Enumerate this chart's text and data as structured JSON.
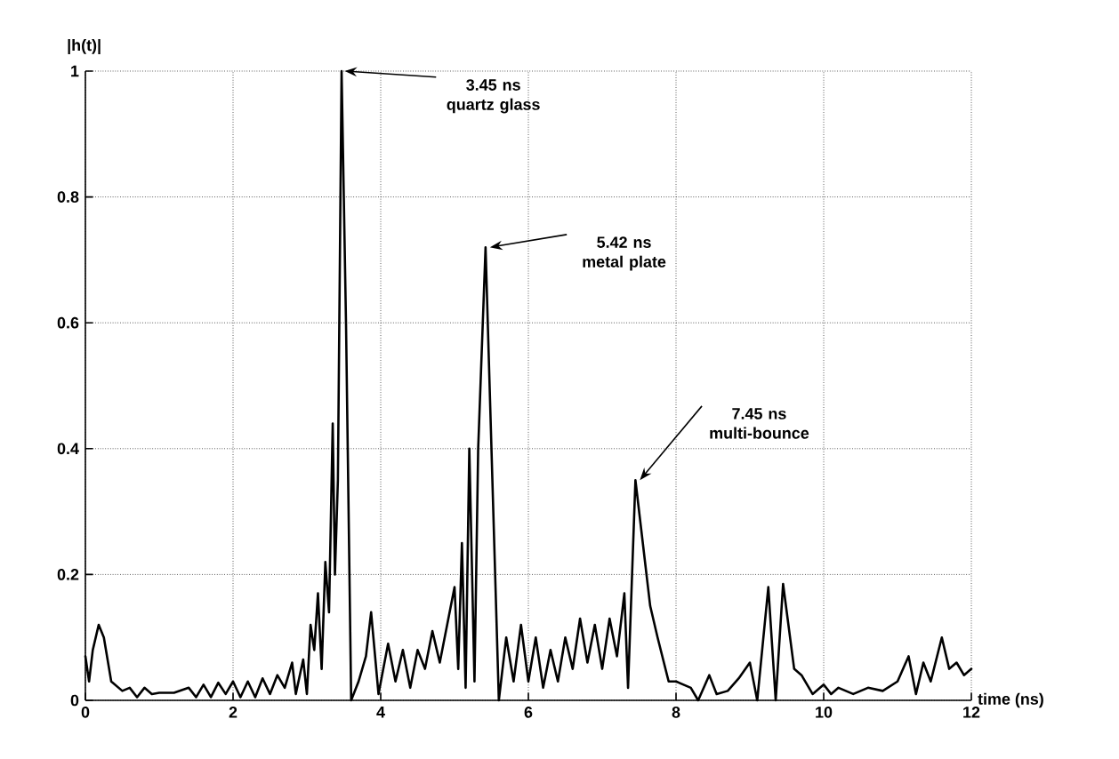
{
  "chart_data": {
    "type": "line",
    "xlabel": "time (ns)",
    "ylabel": "|h(t)|",
    "x": [
      0,
      0.05,
      0.1,
      0.18,
      0.25,
      0.35,
      0.5,
      0.6,
      0.7,
      0.8,
      0.9,
      1.0,
      1.2,
      1.4,
      1.5,
      1.6,
      1.7,
      1.8,
      1.9,
      2.0,
      2.1,
      2.2,
      2.3,
      2.4,
      2.5,
      2.6,
      2.7,
      2.8,
      2.85,
      2.95,
      3.0,
      3.05,
      3.1,
      3.15,
      3.2,
      3.25,
      3.3,
      3.35,
      3.38,
      3.42,
      3.47,
      3.53,
      3.6,
      3.7,
      3.8,
      3.87,
      3.97,
      4.1,
      4.2,
      4.3,
      4.4,
      4.5,
      4.6,
      4.7,
      4.8,
      4.9,
      5.0,
      5.05,
      5.1,
      5.15,
      5.2,
      5.27,
      5.32,
      5.42,
      5.5,
      5.6,
      5.7,
      5.8,
      5.9,
      6.0,
      6.1,
      6.2,
      6.3,
      6.4,
      6.5,
      6.6,
      6.7,
      6.8,
      6.9,
      7.0,
      7.1,
      7.2,
      7.3,
      7.35,
      7.45,
      7.55,
      7.65,
      7.75,
      7.9,
      8.0,
      8.2,
      8.3,
      8.45,
      8.55,
      8.7,
      8.85,
      9.0,
      9.1,
      9.25,
      9.35,
      9.45,
      9.6,
      9.7,
      9.85,
      10.0,
      10.1,
      10.2,
      10.4,
      10.6,
      10.8,
      11.0,
      11.15,
      11.25,
      11.35,
      11.45,
      11.6,
      11.7,
      11.8,
      11.9,
      12.0
    ],
    "series": [
      {
        "color": "#000000",
        "values": [
          0.07,
          0.03,
          0.08,
          0.12,
          0.1,
          0.03,
          0.015,
          0.02,
          0.005,
          0.02,
          0.01,
          0.012,
          0.012,
          0.02,
          0.005,
          0.025,
          0.005,
          0.028,
          0.01,
          0.03,
          0.005,
          0.03,
          0.005,
          0.035,
          0.01,
          0.04,
          0.02,
          0.06,
          0.01,
          0.065,
          0.01,
          0.12,
          0.08,
          0.17,
          0.05,
          0.22,
          0.14,
          0.44,
          0.2,
          0.35,
          1.0,
          0.6,
          0.0,
          0.03,
          0.07,
          0.14,
          0.01,
          0.09,
          0.03,
          0.08,
          0.02,
          0.08,
          0.05,
          0.11,
          0.06,
          0.12,
          0.18,
          0.05,
          0.25,
          0.02,
          0.4,
          0.03,
          0.4,
          0.72,
          0.4,
          0.0,
          0.1,
          0.03,
          0.12,
          0.03,
          0.1,
          0.02,
          0.08,
          0.03,
          0.1,
          0.05,
          0.13,
          0.06,
          0.12,
          0.05,
          0.13,
          0.07,
          0.17,
          0.02,
          0.35,
          0.25,
          0.15,
          0.1,
          0.03,
          0.03,
          0.02,
          0.0,
          0.04,
          0.01,
          0.015,
          0.035,
          0.06,
          0.0,
          0.18,
          0.0,
          0.185,
          0.05,
          0.04,
          0.01,
          0.025,
          0.01,
          0.02,
          0.01,
          0.02,
          0.015,
          0.03,
          0.07,
          0.01,
          0.06,
          0.03,
          0.1,
          0.05,
          0.06,
          0.04,
          0.05
        ]
      }
    ],
    "xlim": [
      0,
      12
    ],
    "ylim": [
      0,
      1
    ],
    "xticks": [
      0,
      2,
      4,
      6,
      8,
      10,
      12
    ],
    "yticks": [
      0,
      0.2,
      0.4,
      0.6,
      0.8,
      1
    ],
    "grid": true,
    "line_style": "solid",
    "marker": "none",
    "annotations": [
      {
        "text": "3.45 ns quartz glass",
        "x": 3.45,
        "y": 1
      },
      {
        "text": "5.42 ns metal plate",
        "x": 5.42,
        "y": 0.72
      },
      {
        "text": "7.45 ns multi-bounce",
        "x": 7.45,
        "y": 0.35
      }
    ]
  }
}
